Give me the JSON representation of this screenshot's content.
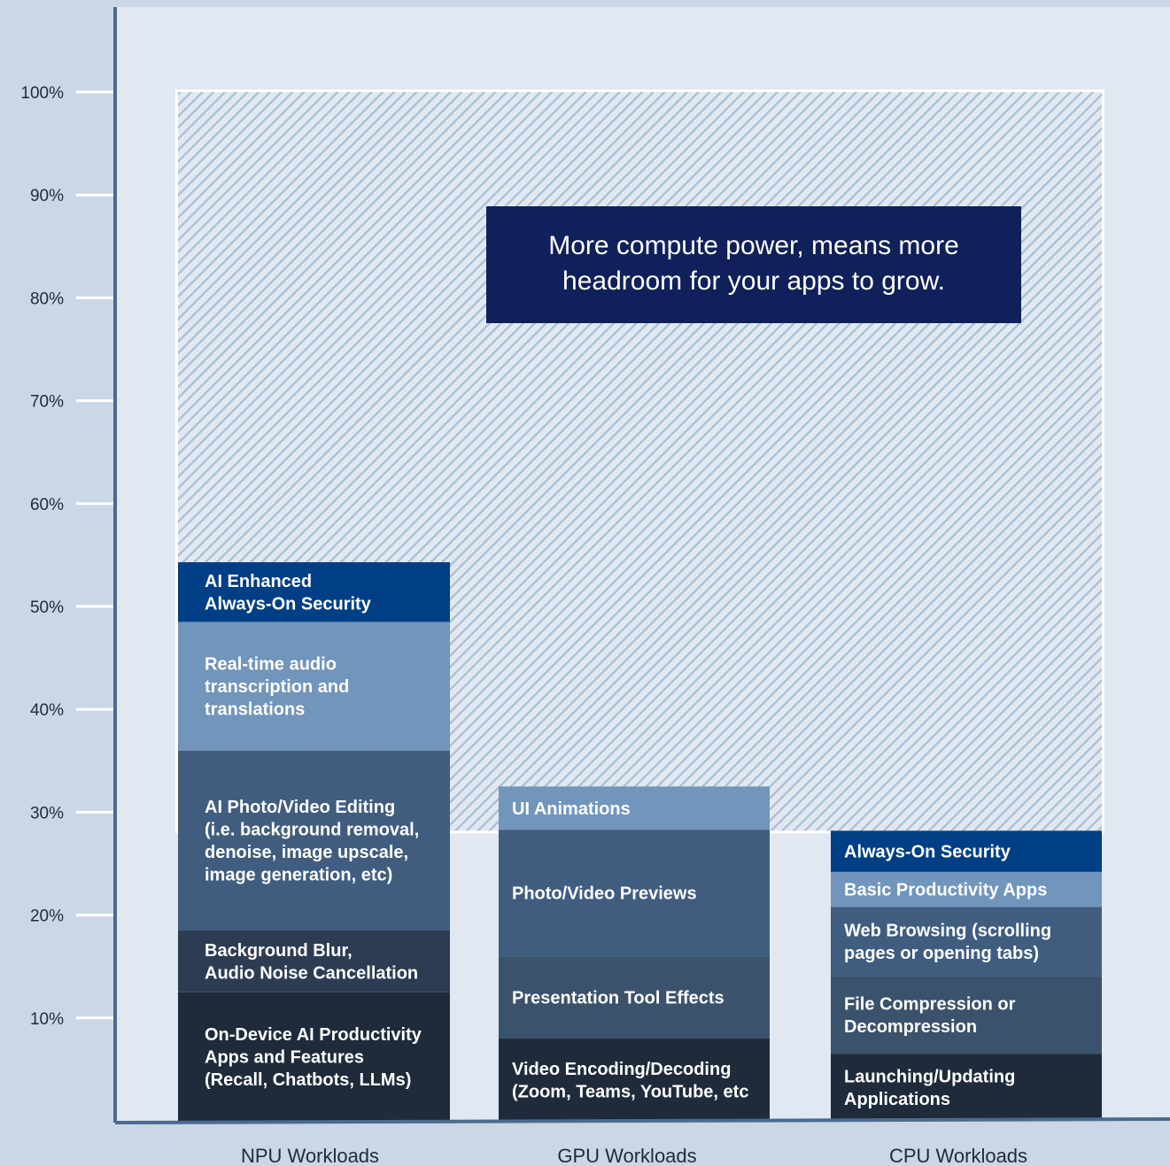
{
  "chart_data": {
    "type": "bar",
    "stacked": true,
    "y_axis": {
      "min": 0,
      "max": 100,
      "ticks": [
        10,
        20,
        30,
        40,
        50,
        60,
        70,
        80,
        90,
        100
      ],
      "tick_labels": [
        "10%",
        "20%",
        "30%",
        "40%",
        "50%",
        "60%",
        "70%",
        "80%",
        "90%",
        "100%"
      ]
    },
    "categories": [
      "NPU Workloads",
      "GPU Workloads",
      "CPU Workloads"
    ],
    "headroom": {
      "top_value": 100,
      "note": "More compute power, means more headroom for your apps to grow."
    },
    "series": [
      {
        "category": "NPU Workloads",
        "segments": [
          {
            "label": "On-Device AI Productivity Apps and Features (Recall, Chatbots, LLMs)",
            "from": 0,
            "to": 12.5,
            "color": "#1f2b3a"
          },
          {
            "label": "Background Blur, Audio Noise Cancellation",
            "from": 12.5,
            "to": 18.5,
            "color": "#2c3d53"
          },
          {
            "label": "AI Photo/Video Editing (i.e. background removal, denoise, image upscale, image generation, etc)",
            "from": 18.5,
            "to": 36,
            "color": "#405d80"
          },
          {
            "label": "Real-time audio transcription and translations",
            "from": 36,
            "to": 48.5,
            "color": "#7195bb"
          },
          {
            "label": "AI Enhanced Always-On Security",
            "from": 48.5,
            "to": 54.3,
            "color": "#003f85"
          }
        ]
      },
      {
        "category": "GPU Workloads",
        "segments": [
          {
            "label": "Video Encoding/Decoding (Zoom, Teams, YouTube, etc",
            "from": 0,
            "to": 8,
            "color": "#1f2b3a"
          },
          {
            "label": "Presentation Tool Effects",
            "from": 8,
            "to": 16,
            "color": "#3b526c"
          },
          {
            "label": "Photo/Video Previews",
            "from": 16,
            "to": 28.3,
            "color": "#405d80"
          },
          {
            "label": "UI Animations",
            "from": 28.3,
            "to": 32.5,
            "color": "#7195bb"
          }
        ]
      },
      {
        "category": "CPU Workloads",
        "segments": [
          {
            "label": "Launching/Updating Applications",
            "from": 0,
            "to": 6.5,
            "color": "#1f2b3a"
          },
          {
            "label": "File Compression or Decompression",
            "from": 6.5,
            "to": 14.1,
            "color": "#3b526c"
          },
          {
            "label": "Web Browsing (scrolling pages or opening tabs)",
            "from": 14.1,
            "to": 20.8,
            "color": "#405d80"
          },
          {
            "label": "Basic Productivity Apps",
            "from": 20.8,
            "to": 24.2,
            "color": "#7195bb"
          },
          {
            "label": "Always-On Security",
            "from": 24.2,
            "to": 28.2,
            "color": "#003f85"
          }
        ]
      }
    ]
  },
  "colors": {
    "background": "#c9d7e6",
    "plot_area": "#e1e8f1",
    "axis": "#4a6b8e",
    "note_box": "#10205a",
    "hatch_stripe": "#a8bed4"
  },
  "segment_lines": {
    "NPU Workloads": [
      [
        "On-Device AI Productivity",
        "Apps and Features",
        "(Recall, Chatbots, LLMs)"
      ],
      [
        "Background Blur,",
        "Audio Noise Cancellation"
      ],
      [
        "AI Photo/Video Editing",
        "(i.e. background removal,",
        "denoise, image upscale,",
        "image generation, etc)"
      ],
      [
        "Real-time audio",
        "transcription and",
        "translations"
      ],
      [
        "AI Enhanced",
        "Always-On Security"
      ]
    ],
    "GPU Workloads": [
      [
        "Video Encoding/Decoding",
        "(Zoom, Teams, YouTube, etc"
      ],
      [
        "Presentation Tool Effects"
      ],
      [
        "Photo/Video Previews"
      ],
      [
        "UI Animations"
      ]
    ],
    "CPU Workloads": [
      [
        "Launching/Updating",
        "Applications"
      ],
      [
        "File Compression or",
        "Decompression"
      ],
      [
        "Web Browsing (scrolling",
        "pages or opening tabs)"
      ],
      [
        "Basic Productivity Apps"
      ],
      [
        "Always-On Security"
      ]
    ]
  },
  "note_lines": [
    "More compute power, means more",
    "headroom for your apps to grow."
  ]
}
